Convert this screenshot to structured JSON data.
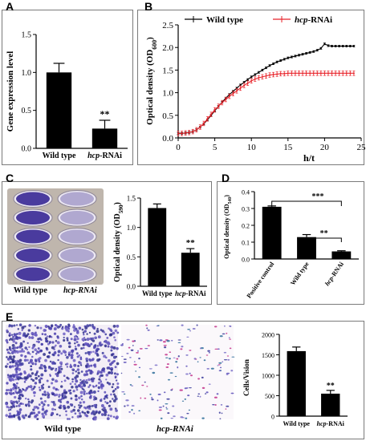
{
  "figure": {
    "panel_labels": [
      "A",
      "B",
      "C",
      "D",
      "E"
    ],
    "colors": {
      "bar": "#000000",
      "wild_type_line": "#000000",
      "rnai_line": "#e8232a",
      "well_purple": "#4a3b9e"
    }
  },
  "panel_a": {
    "ylabel": "Gene expression level",
    "significance": "**",
    "xtick_labels": [
      "Wild type",
      "hcp-RNAi"
    ]
  },
  "panel_b": {
    "ylabel": "Optical density (OD600)",
    "xlabel": "h/t",
    "legend": [
      "Wild type",
      "hcp-RNAi"
    ]
  },
  "panel_c": {
    "photo_labels": [
      "Wild type",
      "hcp-RNAi"
    ],
    "ylabel": "Optical density (OD590)",
    "significance": "**",
    "xtick_labels": [
      "Wild type",
      "hcp-RNAi"
    ]
  },
  "panel_d": {
    "ylabel": "Optical density (OD540)",
    "brackets": [
      "***",
      "**"
    ],
    "xtick_labels": [
      "Positive control",
      "Wild type",
      "hcp-RNAi"
    ]
  },
  "panel_e": {
    "photo_labels": [
      "Wild type",
      "hcp-RNAi"
    ],
    "ylabel": "Cells/Vision",
    "significance": "**",
    "xtick_labels": [
      "Wild type",
      "hcp-RNAi"
    ]
  },
  "chart_data": [
    {
      "id": "A",
      "type": "bar",
      "categories": [
        "Wild type",
        "hcp-RNAi"
      ],
      "values": [
        1.0,
        0.26
      ],
      "errors": [
        0.12,
        0.11
      ],
      "ylabel": "Gene expression level",
      "ylim": [
        0,
        1.5
      ],
      "yticks": [
        0.0,
        0.5,
        1.0,
        1.5
      ],
      "ytick_labels": [
        "0.0",
        "0.5",
        "1.0",
        "1.5"
      ],
      "annotations": [
        "**"
      ],
      "grid": false
    },
    {
      "id": "B",
      "type": "line",
      "title": "",
      "xlabel": "h/t",
      "ylabel": "Optical density (OD600)",
      "xlim": [
        0,
        25
      ],
      "ylim": [
        0,
        2.5
      ],
      "xticks": [
        0,
        5,
        10,
        15,
        20,
        25
      ],
      "xtick_labels": [
        "0",
        "5",
        "10",
        "15",
        "20",
        "25"
      ],
      "yticks": [
        0,
        0.5,
        1.0,
        1.5,
        2.0,
        2.5
      ],
      "ytick_labels": [
        "0.0",
        "0.5",
        "1.0",
        "1.5",
        "2.0",
        "2.5"
      ],
      "legend_position": "top",
      "x": [
        0,
        0.5,
        1,
        1.5,
        2,
        2.5,
        3,
        3.5,
        4,
        4.5,
        5,
        5.5,
        6,
        6.5,
        7,
        7.5,
        8,
        8.5,
        9,
        9.5,
        10,
        10.5,
        11,
        11.5,
        12,
        12.5,
        13,
        13.5,
        14,
        14.5,
        15,
        15.5,
        16,
        16.5,
        17,
        17.5,
        18,
        18.5,
        19,
        19.5,
        20,
        20.5,
        21,
        21.5,
        22,
        22.5,
        23,
        23.5,
        24
      ],
      "series": [
        {
          "name": "Wild type",
          "color": "#000000",
          "values": [
            0.1,
            0.1,
            0.11,
            0.12,
            0.14,
            0.18,
            0.24,
            0.31,
            0.4,
            0.5,
            0.6,
            0.7,
            0.79,
            0.88,
            0.96,
            1.03,
            1.1,
            1.17,
            1.23,
            1.29,
            1.35,
            1.4,
            1.45,
            1.5,
            1.55,
            1.6,
            1.64,
            1.68,
            1.71,
            1.74,
            1.77,
            1.79,
            1.81,
            1.83,
            1.85,
            1.87,
            1.89,
            1.91,
            1.94,
            1.98,
            2.08,
            2.04,
            2.03,
            2.03,
            2.03,
            2.03,
            2.03,
            2.03,
            2.03
          ],
          "error": 0.02
        },
        {
          "name": "hcp-RNAi",
          "color": "#e8232a",
          "values": [
            0.1,
            0.1,
            0.11,
            0.12,
            0.14,
            0.18,
            0.24,
            0.32,
            0.42,
            0.52,
            0.62,
            0.7,
            0.78,
            0.85,
            0.92,
            0.98,
            1.04,
            1.1,
            1.16,
            1.21,
            1.26,
            1.3,
            1.33,
            1.35,
            1.37,
            1.39,
            1.4,
            1.41,
            1.42,
            1.42,
            1.43,
            1.43,
            1.43,
            1.43,
            1.43,
            1.43,
            1.43,
            1.43,
            1.43,
            1.43,
            1.43,
            1.43,
            1.43,
            1.43,
            1.43,
            1.43,
            1.43,
            1.43,
            1.43
          ],
          "error": 0.05
        }
      ]
    },
    {
      "id": "C",
      "type": "bar",
      "categories": [
        "Wild type",
        "hcp-RNAi"
      ],
      "values": [
        1.33,
        0.57
      ],
      "errors": [
        0.07,
        0.07
      ],
      "ylabel": "Optical density (OD590)",
      "ylim": [
        0,
        1.5
      ],
      "yticks": [
        0.0,
        0.5,
        1.0,
        1.5
      ],
      "ytick_labels": [
        "0.0",
        "0.5",
        "1.0",
        "1.5"
      ],
      "annotations": [
        "**"
      ],
      "grid": false
    },
    {
      "id": "D",
      "type": "bar",
      "categories": [
        "Positive control",
        "Wild type",
        "hcp-RNAi"
      ],
      "values": [
        0.31,
        0.13,
        0.045
      ],
      "errors": [
        0.005,
        0.015,
        0.004
      ],
      "ylabel": "Optical density (OD540)",
      "ylim": [
        0,
        0.4
      ],
      "yticks": [
        0.0,
        0.1,
        0.2,
        0.3,
        0.4
      ],
      "ytick_labels": [
        "0.0",
        "0.1",
        "0.2",
        "0.3",
        "0.4"
      ],
      "annotations": [
        "***",
        "**"
      ],
      "grid": false
    },
    {
      "id": "E",
      "type": "bar",
      "categories": [
        "Wild type",
        "hcp-RNAi"
      ],
      "values": [
        1590,
        550
      ],
      "errors": [
        100,
        80
      ],
      "ylabel": "Cells/Vision",
      "ylim": [
        0,
        2000
      ],
      "yticks": [
        0,
        500,
        1000,
        1500,
        2000
      ],
      "ytick_labels": [
        "0",
        "500",
        "1000",
        "1500",
        "2000"
      ],
      "annotations": [
        "**"
      ],
      "grid": false
    }
  ]
}
